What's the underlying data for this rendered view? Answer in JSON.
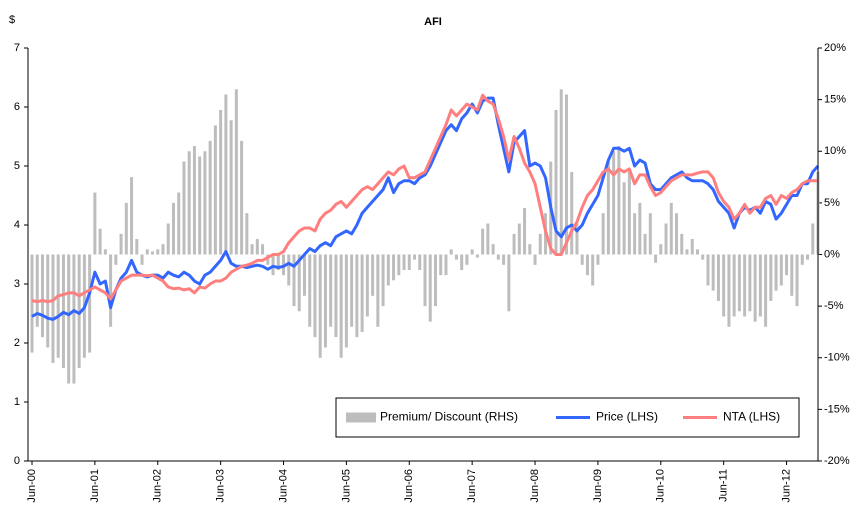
{
  "chart_data": {
    "type": "combo",
    "title": "AFI",
    "y_label": "$",
    "categories": [
      "Jun-00",
      null,
      null,
      null,
      null,
      null,
      null,
      null,
      null,
      null,
      null,
      null,
      "Jun-01",
      null,
      null,
      null,
      null,
      null,
      null,
      null,
      null,
      null,
      null,
      null,
      "Jun-02",
      null,
      null,
      null,
      null,
      null,
      null,
      null,
      null,
      null,
      null,
      null,
      "Jun-03",
      null,
      null,
      null,
      null,
      null,
      null,
      null,
      null,
      null,
      null,
      null,
      "Jun-04",
      null,
      null,
      null,
      null,
      null,
      null,
      null,
      null,
      null,
      null,
      null,
      "Jun-05",
      null,
      null,
      null,
      null,
      null,
      null,
      null,
      null,
      null,
      null,
      null,
      "Jun-06",
      null,
      null,
      null,
      null,
      null,
      null,
      null,
      null,
      null,
      null,
      null,
      "Jun-07",
      null,
      null,
      null,
      null,
      null,
      null,
      null,
      null,
      null,
      null,
      null,
      "Jun-08",
      null,
      null,
      null,
      null,
      null,
      null,
      null,
      null,
      null,
      null,
      null,
      "Jun-09",
      null,
      null,
      null,
      null,
      null,
      null,
      null,
      null,
      null,
      null,
      null,
      "Jun-10",
      null,
      null,
      null,
      null,
      null,
      null,
      null,
      null,
      null,
      null,
      null,
      "Jun-11",
      null,
      null,
      null,
      null,
      null,
      null,
      null,
      null,
      null,
      null,
      null,
      "Jun-12",
      null,
      null,
      null,
      null,
      null,
      null
    ],
    "series": [
      {
        "name": "Premium/ Discount (RHS)",
        "type": "bar",
        "axis": "y2",
        "color": "#bdbdbd",
        "values": [
          -9.5,
          -7,
          -8,
          -9,
          -10.5,
          -10,
          -11,
          -12.5,
          -12.5,
          -11,
          -10,
          -9.5,
          6,
          2.5,
          0.5,
          -7,
          -1,
          2,
          5,
          7.5,
          1.5,
          -1,
          0.5,
          0.3,
          0.5,
          1,
          3,
          5,
          6,
          9,
          10,
          10.5,
          9.5,
          10,
          11,
          12.5,
          14,
          15.5,
          13,
          16,
          11,
          4,
          1,
          1.5,
          1,
          -1,
          -2,
          -1.5,
          -2,
          -3,
          -5,
          -5.5,
          -4,
          -7,
          -8,
          -10,
          -9,
          -7,
          -8,
          -10,
          -9,
          -7,
          -8,
          -7.5,
          -6,
          -4,
          -7,
          -5,
          -3,
          -2.5,
          -2,
          -1.5,
          -1.5,
          -0.5,
          -1.5,
          -5,
          -6.5,
          -5,
          -2,
          -2,
          0.5,
          -0.5,
          -1.5,
          -1,
          0.5,
          -0.3,
          2.5,
          3,
          1,
          -0.5,
          -1,
          -5.5,
          2,
          3,
          4.5,
          1,
          -1,
          2,
          4,
          9,
          14,
          16,
          15.5,
          8,
          3,
          -1,
          -2,
          -3,
          -1,
          4,
          9,
          10,
          10.5,
          7,
          8,
          4,
          5,
          2,
          4,
          -0.8,
          1,
          3,
          5,
          4,
          2,
          0.5,
          1.5,
          0.5,
          -0.5,
          -3,
          -3.5,
          -4.5,
          -6,
          -7,
          -6,
          -5.5,
          -6,
          -5.5,
          -6.5,
          -6,
          -7,
          -4.5,
          -3.5,
          -3,
          -2,
          -4,
          -5,
          -1,
          -0.5,
          3,
          8
        ]
      },
      {
        "name": "Price (LHS)",
        "type": "line",
        "color": "#3366ff",
        "values": [
          2.45,
          2.5,
          2.47,
          2.42,
          2.4,
          2.45,
          2.52,
          2.48,
          2.55,
          2.5,
          2.6,
          2.85,
          3.2,
          3.0,
          3.05,
          2.6,
          2.9,
          3.1,
          3.2,
          3.4,
          3.2,
          3.15,
          3.12,
          3.15,
          3.15,
          3.1,
          3.2,
          3.15,
          3.12,
          3.2,
          3.15,
          3.05,
          3.0,
          3.15,
          3.2,
          3.3,
          3.4,
          3.55,
          3.35,
          3.3,
          3.3,
          3.28,
          3.3,
          3.32,
          3.3,
          3.25,
          3.3,
          3.28,
          3.3,
          3.35,
          3.3,
          3.4,
          3.5,
          3.6,
          3.55,
          3.65,
          3.7,
          3.65,
          3.8,
          3.85,
          3.9,
          3.85,
          4.0,
          4.2,
          4.3,
          4.4,
          4.5,
          4.6,
          4.8,
          4.55,
          4.7,
          4.75,
          4.75,
          4.7,
          4.8,
          4.85,
          5.0,
          5.2,
          5.4,
          5.6,
          5.7,
          5.6,
          5.8,
          5.9,
          6.05,
          5.9,
          6.1,
          6.15,
          6.15,
          5.7,
          5.3,
          4.9,
          5.4,
          5.5,
          5.6,
          5.0,
          5.05,
          5.0,
          4.8,
          4.3,
          3.9,
          3.8,
          3.95,
          4.0,
          3.9,
          4.0,
          4.2,
          4.35,
          4.5,
          4.8,
          5.1,
          5.3,
          5.3,
          5.25,
          5.3,
          5.0,
          5.1,
          5.05,
          4.7,
          4.6,
          4.6,
          4.7,
          4.8,
          4.85,
          4.9,
          4.8,
          4.75,
          4.75,
          4.75,
          4.7,
          4.6,
          4.4,
          4.3,
          4.2,
          3.95,
          4.2,
          4.3,
          4.25,
          4.3,
          4.2,
          4.4,
          4.35,
          4.1,
          4.2,
          4.35,
          4.5,
          4.5,
          4.7,
          4.7,
          4.9,
          5.0
        ]
      },
      {
        "name": "NTA (LHS)",
        "type": "line",
        "color": "#ff7f7f",
        "values": [
          2.72,
          2.7,
          2.72,
          2.7,
          2.72,
          2.8,
          2.82,
          2.85,
          2.85,
          2.8,
          2.85,
          2.9,
          2.95,
          2.9,
          2.85,
          2.75,
          2.9,
          3.05,
          3.1,
          3.15,
          3.15,
          3.15,
          3.14,
          3.15,
          3.1,
          3.05,
          2.95,
          2.92,
          2.93,
          2.9,
          2.92,
          2.85,
          2.95,
          2.93,
          3.0,
          3.05,
          3.05,
          3.1,
          3.2,
          3.25,
          3.3,
          3.32,
          3.35,
          3.4,
          3.4,
          3.45,
          3.5,
          3.5,
          3.55,
          3.7,
          3.8,
          3.9,
          3.95,
          3.95,
          3.9,
          4.1,
          4.2,
          4.25,
          4.35,
          4.4,
          4.3,
          4.4,
          4.5,
          4.6,
          4.65,
          4.6,
          4.7,
          4.8,
          4.9,
          4.85,
          4.95,
          5.0,
          4.8,
          4.8,
          4.85,
          4.9,
          5.1,
          5.3,
          5.5,
          5.7,
          5.95,
          5.85,
          5.95,
          6.05,
          6.0,
          5.95,
          6.2,
          6.1,
          6.05,
          5.8,
          5.5,
          5.1,
          5.5,
          5.3,
          5.05,
          4.9,
          4.7,
          4.3,
          3.9,
          3.6,
          3.5,
          3.5,
          3.7,
          3.9,
          4.05,
          4.3,
          4.5,
          4.6,
          4.75,
          4.9,
          4.95,
          4.85,
          4.95,
          4.9,
          4.95,
          4.7,
          4.85,
          4.85,
          4.65,
          4.5,
          4.55,
          4.65,
          4.75,
          4.8,
          4.85,
          4.85,
          4.85,
          4.88,
          4.9,
          4.9,
          4.8,
          4.55,
          4.4,
          4.3,
          4.1,
          4.2,
          4.35,
          4.2,
          4.3,
          4.3,
          4.45,
          4.5,
          4.35,
          4.5,
          4.45,
          4.55,
          4.6,
          4.7,
          4.75,
          4.75,
          4.75
        ]
      }
    ],
    "ylim": [
      0,
      7
    ],
    "yticks": [
      0,
      1,
      2,
      3,
      4,
      5,
      6,
      7
    ],
    "y2lim": [
      -20,
      20
    ],
    "y2ticks": [
      {
        "value": -20,
        "label": "-20%"
      },
      {
        "value": -15,
        "label": "-15%"
      },
      {
        "value": -10,
        "label": "-10%"
      },
      {
        "value": -5,
        "label": "-5%"
      },
      {
        "value": 0,
        "label": "0%"
      },
      {
        "value": 5,
        "label": "5%"
      },
      {
        "value": 10,
        "label": "10%"
      },
      {
        "value": 15,
        "label": "15%"
      },
      {
        "value": 20,
        "label": "20%"
      }
    ],
    "grid": false,
    "legend": "bottom-right"
  }
}
